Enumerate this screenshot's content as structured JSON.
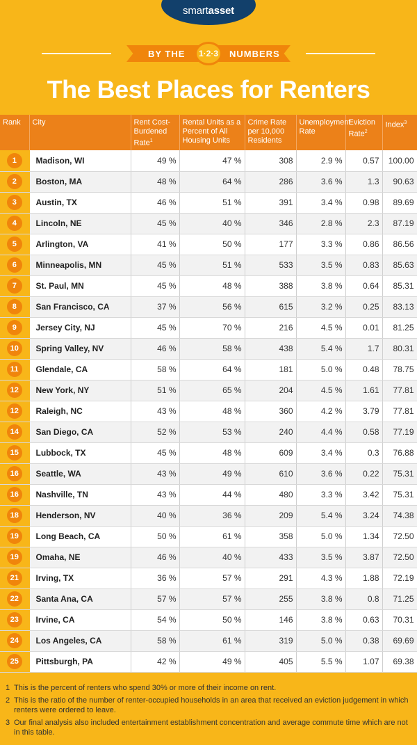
{
  "brand": {
    "name_light": "smart",
    "name_bold": "asset"
  },
  "byline": {
    "left": "BY THE",
    "medal": "1·2·3",
    "right": "NUMBERS"
  },
  "title": "The Best Places for Renters",
  "chart_data": {
    "type": "table",
    "columns": [
      {
        "label": "Rank"
      },
      {
        "label": "City"
      },
      {
        "label": "Rent Cost-Burdened Rate",
        "note": "1"
      },
      {
        "label": "Rental Units as a Percent of All Housing Units"
      },
      {
        "label": "Crime Rate per 10,000 Residents"
      },
      {
        "label": "Unemployment Rate"
      },
      {
        "label": "Eviction Rate",
        "note": "2"
      },
      {
        "label": "Index",
        "note": "3"
      }
    ],
    "rows": [
      [
        "1",
        "Madison, WI",
        "49 %",
        "47 %",
        "308",
        "2.9 %",
        "0.57",
        "100.00"
      ],
      [
        "2",
        "Boston, MA",
        "48 %",
        "64 %",
        "286",
        "3.6 %",
        "1.3",
        "90.63"
      ],
      [
        "3",
        "Austin, TX",
        "46 %",
        "51 %",
        "391",
        "3.4 %",
        "0.98",
        "89.69"
      ],
      [
        "4",
        "Lincoln, NE",
        "45 %",
        "40 %",
        "346",
        "2.8 %",
        "2.3",
        "87.19"
      ],
      [
        "5",
        "Arlington, VA",
        "41 %",
        "50 %",
        "177",
        "3.3 %",
        "0.86",
        "86.56"
      ],
      [
        "6",
        "Minneapolis, MN",
        "45 %",
        "51 %",
        "533",
        "3.5 %",
        "0.83",
        "85.63"
      ],
      [
        "7",
        "St. Paul, MN",
        "45 %",
        "48 %",
        "388",
        "3.8 %",
        "0.64",
        "85.31"
      ],
      [
        "8",
        "San Francisco, CA",
        "37 %",
        "56 %",
        "615",
        "3.2 %",
        "0.25",
        "83.13"
      ],
      [
        "9",
        "Jersey City, NJ",
        "45 %",
        "70 %",
        "216",
        "4.5 %",
        "0.01",
        "81.25"
      ],
      [
        "10",
        "Spring Valley, NV",
        "46 %",
        "58 %",
        "438",
        "5.4 %",
        "1.7",
        "80.31"
      ],
      [
        "11",
        "Glendale, CA",
        "58 %",
        "64 %",
        "181",
        "5.0 %",
        "0.48",
        "78.75"
      ],
      [
        "12",
        "New York, NY",
        "51 %",
        "65 %",
        "204",
        "4.5 %",
        "1.61",
        "77.81"
      ],
      [
        "12",
        "Raleigh, NC",
        "43 %",
        "48 %",
        "360",
        "4.2 %",
        "3.79",
        "77.81"
      ],
      [
        "14",
        "San Diego, CA",
        "52 %",
        "53 %",
        "240",
        "4.4 %",
        "0.58",
        "77.19"
      ],
      [
        "15",
        "Lubbock, TX",
        "45 %",
        "48 %",
        "609",
        "3.4 %",
        "0.3",
        "76.88"
      ],
      [
        "16",
        "Seattle, WA",
        "43 %",
        "49 %",
        "610",
        "3.6 %",
        "0.22",
        "75.31"
      ],
      [
        "16",
        "Nashville, TN",
        "43 %",
        "44 %",
        "480",
        "3.3 %",
        "3.42",
        "75.31"
      ],
      [
        "18",
        "Henderson, NV",
        "40 %",
        "36 %",
        "209",
        "5.4 %",
        "3.24",
        "74.38"
      ],
      [
        "19",
        "Long Beach, CA",
        "50 %",
        "61 %",
        "358",
        "5.0 %",
        "1.34",
        "72.50"
      ],
      [
        "19",
        "Omaha, NE",
        "46 %",
        "40 %",
        "433",
        "3.5 %",
        "3.87",
        "72.50"
      ],
      [
        "21",
        "Irving, TX",
        "36 %",
        "57 %",
        "291",
        "4.3 %",
        "1.88",
        "72.19"
      ],
      [
        "22",
        "Santa Ana, CA",
        "57 %",
        "57 %",
        "255",
        "3.8 %",
        "0.8",
        "71.25"
      ],
      [
        "23",
        "Irvine, CA",
        "54 %",
        "50 %",
        "146",
        "3.8 %",
        "0.63",
        "70.31"
      ],
      [
        "24",
        "Los Angeles, CA",
        "58 %",
        "61 %",
        "319",
        "5.0 %",
        "0.38",
        "69.69"
      ],
      [
        "25",
        "Pittsburgh, PA",
        "42 %",
        "49 %",
        "405",
        "5.5 %",
        "1.07",
        "69.38"
      ]
    ]
  },
  "footnotes": [
    {
      "num": "1",
      "text": "This is the percent of renters who spend 30% or more of their income on rent."
    },
    {
      "num": "2",
      "text": "This is the ratio of the number of renter-occupied households in an area that received an eviction judgement in which renters were ordered to leave."
    },
    {
      "num": "3",
      "text": "Our final analysis also included entertainment establishment concentration and average commute time which are not in this table."
    }
  ],
  "colors": {
    "background": "#f8b619",
    "header": "#ec8119",
    "rank_circle": "#f0850b",
    "logo_badge": "#12406b"
  }
}
